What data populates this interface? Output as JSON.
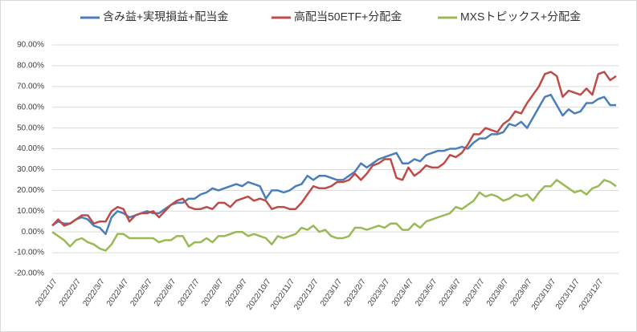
{
  "chart_data": {
    "type": "line",
    "categories": [
      "2022/1/7",
      null,
      null,
      null,
      "2022/2/7",
      null,
      null,
      null,
      "2022/3/7",
      null,
      null,
      null,
      "2022/4/7",
      null,
      null,
      null,
      "2022/5/7",
      null,
      null,
      null,
      "2022/6/7",
      null,
      null,
      null,
      "2022/7/7",
      null,
      null,
      null,
      "2022/8/7",
      null,
      null,
      null,
      "2022/9/7",
      null,
      null,
      null,
      "2022/10/7",
      null,
      null,
      null,
      "2022/11/7",
      null,
      null,
      null,
      "2022/12/7",
      null,
      null,
      null,
      "2023/1/7",
      null,
      null,
      null,
      "2023/2/7",
      null,
      null,
      null,
      "2023/3/7",
      null,
      null,
      null,
      "2023/4/7",
      null,
      null,
      null,
      "2023/5/7",
      null,
      null,
      null,
      "2023/6/7",
      null,
      null,
      null,
      "2023/7/7",
      null,
      null,
      null,
      "2023/8/7",
      null,
      null,
      null,
      "2023/9/7",
      null,
      null,
      null,
      "2023/10/7",
      null,
      null,
      null,
      "2023/11/7",
      null,
      null,
      null,
      "2023/12/7",
      null,
      null,
      null
    ],
    "series": [
      {
        "name": "含み益+実現損益+配当金",
        "color": "#4a7ebb",
        "values": [
          3,
          5,
          4,
          4,
          6,
          7,
          6,
          3,
          2,
          -1,
          7,
          10,
          9,
          7,
          8,
          9,
          10,
          9,
          9,
          11,
          13,
          14,
          14,
          16,
          16,
          18,
          19,
          21,
          20,
          21,
          22,
          23,
          22,
          24,
          23,
          22,
          16,
          20,
          20,
          19,
          20,
          22,
          23,
          27,
          25,
          27,
          27,
          26,
          25,
          25,
          27,
          29,
          33,
          31,
          33,
          35,
          36,
          37,
          38,
          33,
          33,
          35,
          34,
          37,
          38,
          39,
          39,
          40,
          40,
          41,
          40,
          43,
          45,
          45,
          47,
          47,
          48,
          52,
          51,
          53,
          50,
          55,
          60,
          65,
          66,
          61,
          56,
          59,
          57,
          58,
          62,
          62,
          64,
          65,
          61,
          61
        ]
      },
      {
        "name": "高配当50ETF+分配金",
        "color": "#be4b48",
        "values": [
          3,
          6,
          3,
          4,
          6,
          8,
          8,
          4,
          5,
          5,
          10,
          12,
          11,
          5,
          8,
          9,
          9,
          10,
          7,
          10,
          13,
          15,
          16,
          12,
          11,
          11,
          12,
          11,
          14,
          14,
          12,
          15,
          16,
          17,
          15,
          16,
          15,
          11,
          12,
          12,
          11,
          11,
          14,
          18,
          22,
          21,
          21,
          22,
          24,
          24,
          25,
          28,
          25,
          28,
          32,
          33,
          35,
          35,
          26,
          25,
          31,
          27,
          29,
          32,
          31,
          31,
          33,
          37,
          36,
          38,
          42,
          47,
          47,
          50,
          49,
          48,
          52,
          54,
          58,
          57,
          62,
          66,
          70,
          76,
          77,
          75,
          65,
          68,
          67,
          66,
          69,
          66,
          76,
          77,
          73,
          75
        ]
      },
      {
        "name": "MXSトピックス+分配金",
        "color": "#98b954",
        "values": [
          0,
          -2,
          -4,
          -7,
          -4,
          -3,
          -5,
          -6,
          -8,
          -9,
          -6,
          -1,
          -1,
          -3,
          -3,
          -3,
          -3,
          -3,
          -5,
          -4,
          -4,
          -2,
          -2,
          -7,
          -5,
          -5,
          -3,
          -5,
          -2,
          -2,
          -1,
          0,
          0,
          -2,
          -1,
          -2,
          -3,
          -6,
          -2,
          -3,
          -2,
          -1,
          2,
          1,
          3,
          0,
          1,
          -2,
          -3,
          -3,
          -2,
          2,
          2,
          1,
          2,
          3,
          2,
          4,
          4,
          1,
          1,
          4,
          2,
          5,
          6,
          7,
          8,
          9,
          12,
          11,
          13,
          15,
          19,
          17,
          18,
          17,
          15,
          16,
          18,
          17,
          18,
          15,
          19,
          22,
          22,
          25,
          23,
          21,
          19,
          20,
          18,
          21,
          22,
          25,
          24,
          22
        ]
      }
    ],
    "ylim": [
      -20,
      90
    ],
    "yticks": [
      {
        "value": -20,
        "label": "-20.00%"
      },
      {
        "value": -10,
        "label": "-10.00%"
      },
      {
        "value": 0,
        "label": "0.00%"
      },
      {
        "value": 10,
        "label": "10.00%"
      },
      {
        "value": 20,
        "label": "20.00%"
      },
      {
        "value": 30,
        "label": "30.00%"
      },
      {
        "value": 40,
        "label": "40.00%"
      },
      {
        "value": 50,
        "label": "50.00%"
      },
      {
        "value": 60,
        "label": "60.00%"
      },
      {
        "value": 70,
        "label": "70.00%"
      },
      {
        "value": 80,
        "label": "80.00%"
      },
      {
        "value": 90,
        "label": "90.00%"
      }
    ],
    "grid": true,
    "legend": "top"
  }
}
